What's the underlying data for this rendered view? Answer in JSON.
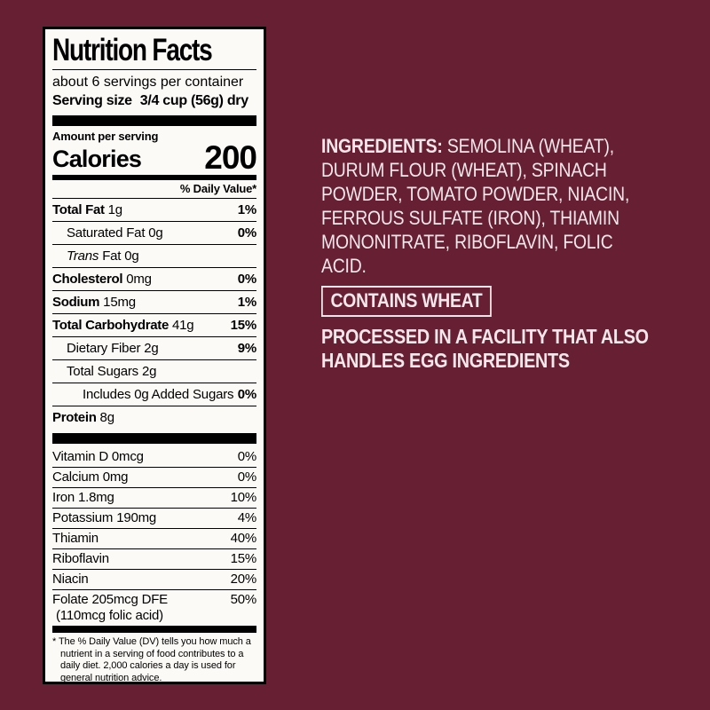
{
  "colors": {
    "background": "#671F33",
    "label_background": "#FCFAF6",
    "label_text": "#000000",
    "panel_text": "#F2E8EB"
  },
  "nutrition_label": {
    "title": "Nutrition Facts",
    "servings_per_container": "about 6 servings per container",
    "serving_size_label": "Serving size",
    "serving_size_value": "3/4 cup (56g) dry",
    "amount_per_serving": "Amount per serving",
    "calories_label": "Calories",
    "calories_value": "200",
    "daily_value_header": "% Daily Value*",
    "rows": [
      {
        "name": "Total Fat",
        "amount": "1g",
        "dv": "1%"
      },
      {
        "name": "Saturated Fat",
        "amount": "0g",
        "dv": "0%"
      },
      {
        "name_italic": "Trans",
        "name": "Fat",
        "amount": "0g",
        "dv": ""
      },
      {
        "name": "Cholesterol",
        "amount": "0mg",
        "dv": "0%"
      },
      {
        "name": "Sodium",
        "amount": "15mg",
        "dv": "1%"
      },
      {
        "name": "Total Carbohydrate",
        "amount": "41g",
        "dv": "15%"
      },
      {
        "name": "Dietary Fiber",
        "amount": "2g",
        "dv": "9%"
      },
      {
        "name": "Total Sugars",
        "amount": "2g",
        "dv": ""
      },
      {
        "name": "Includes 0g Added Sugars",
        "amount": "",
        "dv": "0%"
      },
      {
        "name": "Protein",
        "amount": "8g",
        "dv": ""
      }
    ],
    "vitamin_rows": [
      {
        "name": "Vitamin D 0mcg",
        "dv": "0%"
      },
      {
        "name": "Calcium 0mg",
        "dv": "0%"
      },
      {
        "name": "Iron 1.8mg",
        "dv": "10%"
      },
      {
        "name": "Potassium 190mg",
        "dv": "4%"
      },
      {
        "name": "Thiamin",
        "dv": "40%"
      },
      {
        "name": "Riboflavin",
        "dv": "15%"
      },
      {
        "name": "Niacin",
        "dv": "20%"
      },
      {
        "name": "Folate 205mcg DFE",
        "dv": "50%",
        "subline": "(110mcg folic acid)"
      }
    ],
    "footnote": "* The % Daily Value (DV) tells you how much a nutrient in a serving of food contributes to a daily diet. 2,000 calories a day is used for general nutrition advice."
  },
  "ingredients_panel": {
    "ingredients_label": "INGREDIENTS:",
    "ingredients_text": " SEMOLINA (WHEAT), DURUM FLOUR (WHEAT), SPINACH POWDER, TOMATO POWDER, NIACIN, FERROUS SULFATE (IRON), THIAMIN MONONITRATE, RIBOFLAVIN, FOLIC ACID.",
    "contains_label": "CONTAINS WHEAT",
    "facility_warning": "PROCESSED IN A FACILITY THAT ALSO HANDLES EGG INGREDIENTS"
  }
}
